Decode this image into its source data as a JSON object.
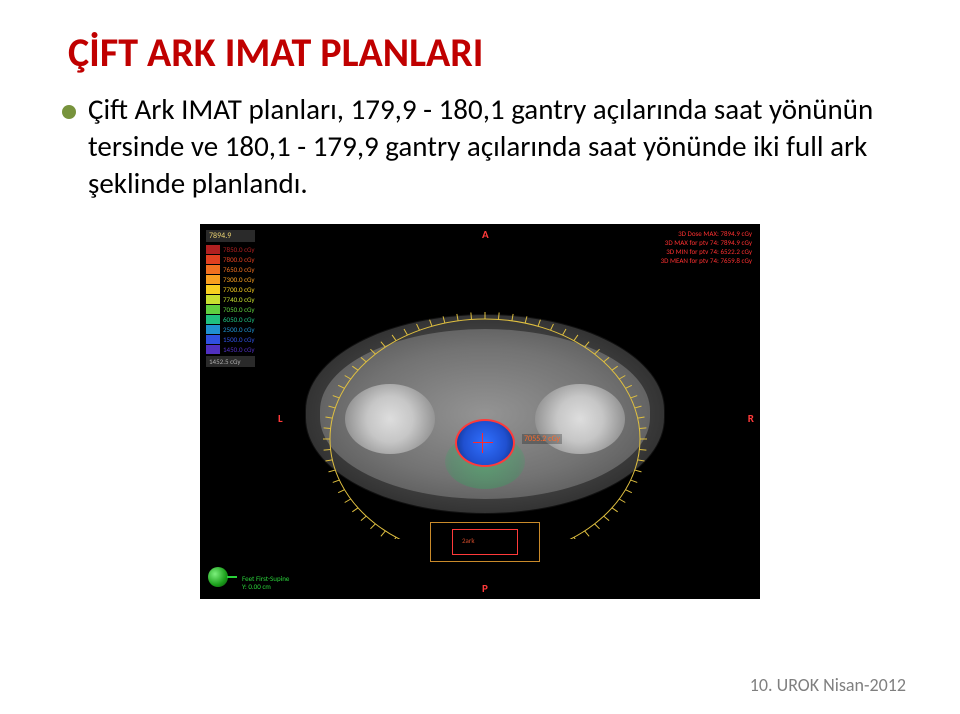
{
  "title": {
    "text": "ÇİFT  ARK IMAT PLANLARI",
    "color": "#c00000"
  },
  "bullet": {
    "dot_color": "#77933c",
    "text": "Çift Ark  IMAT planları, 179,9 - 180,1 gantry açılarında saat yönünün tersinde ve 180,1 - 179,9 gantry açılarında saat yönünde iki full ark şeklinde planlandı."
  },
  "footer": "10. UROK Nisan-2012",
  "figure": {
    "background": "#000000",
    "legend_header": "7894.9",
    "legend_header_unit": "cGy",
    "legend": [
      {
        "color": "#b02020",
        "label": "7850.0 cGy"
      },
      {
        "color": "#e04020",
        "label": "7800.0 cGy"
      },
      {
        "color": "#f07020",
        "label": "7650.0 cGy"
      },
      {
        "color": "#f8a020",
        "label": "7300.0 cGy"
      },
      {
        "color": "#f8d020",
        "label": "7700.0 cGy"
      },
      {
        "color": "#c8e030",
        "label": "7740.0 cGy"
      },
      {
        "color": "#60d040",
        "label": "7050.0 cGy"
      },
      {
        "color": "#20c080",
        "label": "6050.0 cGy"
      },
      {
        "color": "#2090d0",
        "label": "2500.0 cGy"
      },
      {
        "color": "#3050e0",
        "label": "1500.0 cGy"
      },
      {
        "color": "#5030c0",
        "label": "1450.0 cGy"
      }
    ],
    "legend_footer": "1452.5 cGy",
    "readout": [
      "3D Dose MAX: 7894.9 cGy",
      "3D MAX for ptv 74: 7894.9 cGy",
      "3D MIN for ptv 74: 6522.2 cGy",
      "3D MEAN for ptv 74: 7659.8 cGy"
    ],
    "axis": {
      "top": "A",
      "right": "R",
      "bottom": "P",
      "left": "L"
    },
    "axis_color": "#ff3a3a",
    "dose_point_label": "7055.2 cGy",
    "field_label": "2ark",
    "patient_info": [
      "Feet First-Supine",
      "Y: 0.00 cm"
    ],
    "arc": {
      "stroke": "#e0c040",
      "tick_color": "#e0c040",
      "tick_count": 72
    }
  }
}
